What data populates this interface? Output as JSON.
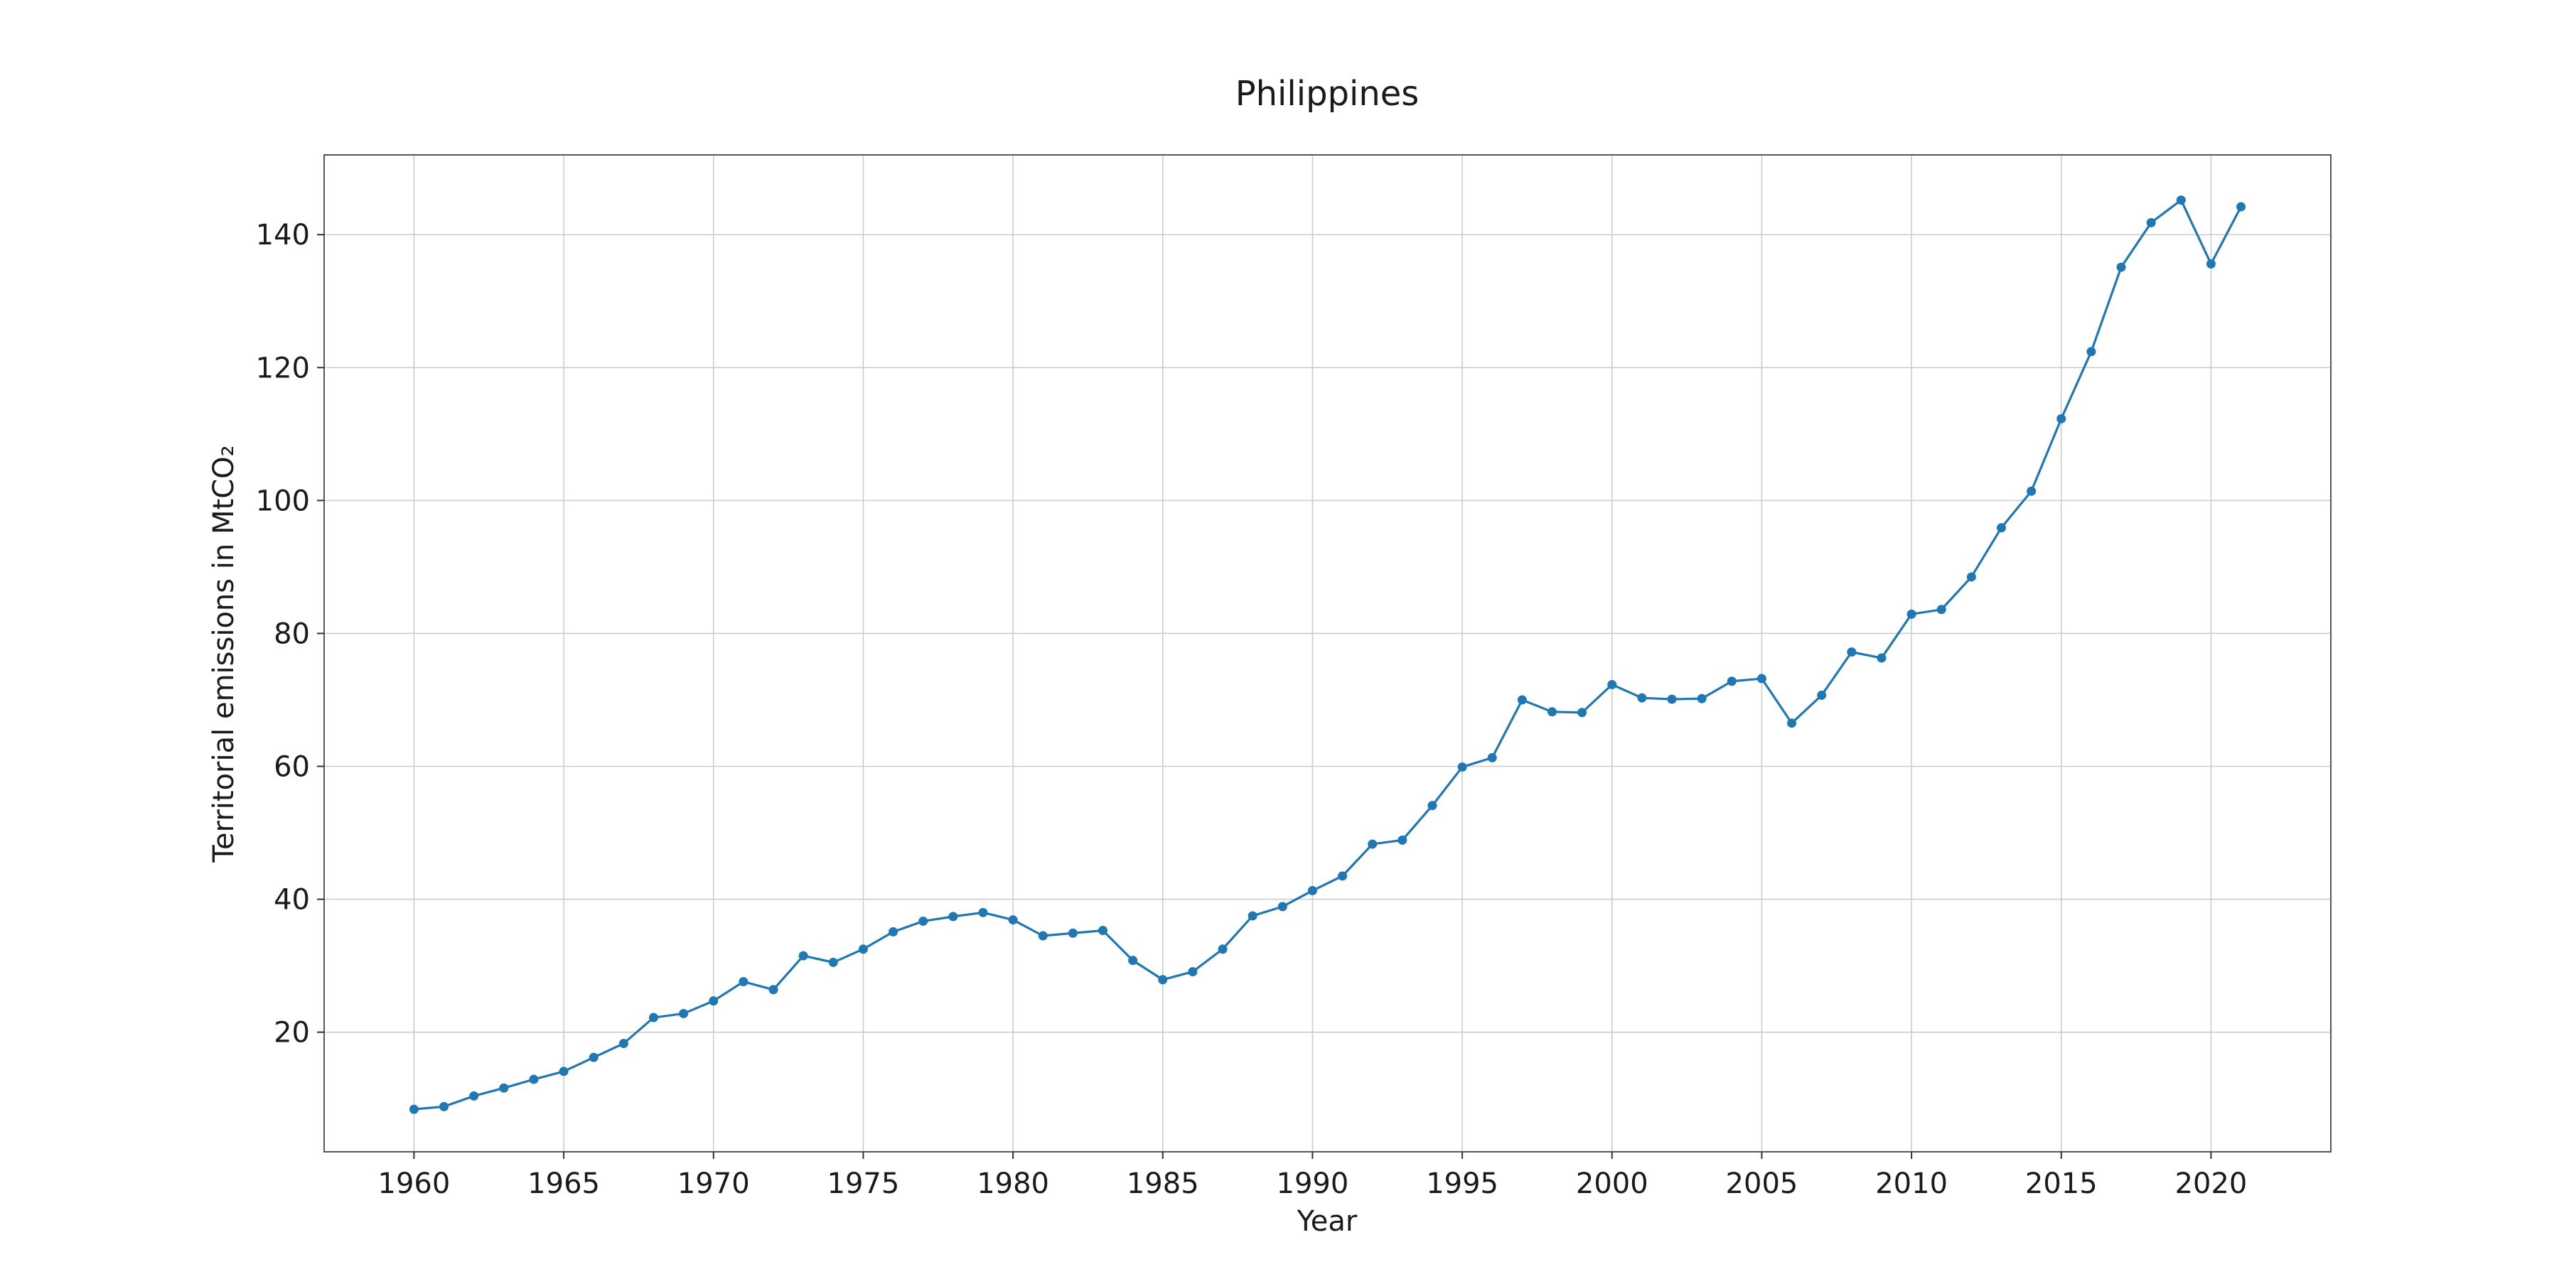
{
  "chart_data": {
    "type": "line",
    "title": "Philippines",
    "xlabel": "Year",
    "ylabel": "Territorial emissions in MtCO₂",
    "xlim": [
      1957,
      2024
    ],
    "ylim": [
      2,
      152
    ],
    "xticks": [
      1960,
      1965,
      1970,
      1975,
      1980,
      1985,
      1990,
      1995,
      2000,
      2005,
      2010,
      2015,
      2020
    ],
    "yticks": [
      20,
      40,
      60,
      80,
      100,
      120,
      140
    ],
    "grid": true,
    "legend": "none",
    "series": [
      {
        "color": "#1f77b4",
        "marker": "circle",
        "x": [
          1960,
          1961,
          1962,
          1963,
          1964,
          1965,
          1966,
          1967,
          1968,
          1969,
          1970,
          1971,
          1972,
          1973,
          1974,
          1975,
          1976,
          1977,
          1978,
          1979,
          1980,
          1981,
          1982,
          1983,
          1984,
          1985,
          1986,
          1987,
          1988,
          1989,
          1990,
          1991,
          1992,
          1993,
          1994,
          1995,
          1996,
          1997,
          1998,
          1999,
          2000,
          2001,
          2002,
          2003,
          2004,
          2005,
          2006,
          2007,
          2008,
          2009,
          2010,
          2011,
          2012,
          2013,
          2014,
          2015,
          2016,
          2017,
          2018,
          2019,
          2020,
          2021
        ],
        "values": [
          8.4,
          8.8,
          10.4,
          11.6,
          12.9,
          14.1,
          16.2,
          18.3,
          22.2,
          22.8,
          24.7,
          27.6,
          26.4,
          31.5,
          30.5,
          32.5,
          35.1,
          36.7,
          37.4,
          38.0,
          36.9,
          34.5,
          34.9,
          35.3,
          30.8,
          27.9,
          29.1,
          32.5,
          37.5,
          38.9,
          41.3,
          43.5,
          48.3,
          48.9,
          54.1,
          59.9,
          61.3,
          70.0,
          68.2,
          68.1,
          72.3,
          70.3,
          70.1,
          70.2,
          72.8,
          73.2,
          66.5,
          70.7,
          77.2,
          76.3,
          82.9,
          83.6,
          88.5,
          95.9,
          101.4,
          112.3,
          122.4,
          135.1,
          141.8,
          145.2,
          135.6,
          144.2
        ]
      }
    ]
  }
}
